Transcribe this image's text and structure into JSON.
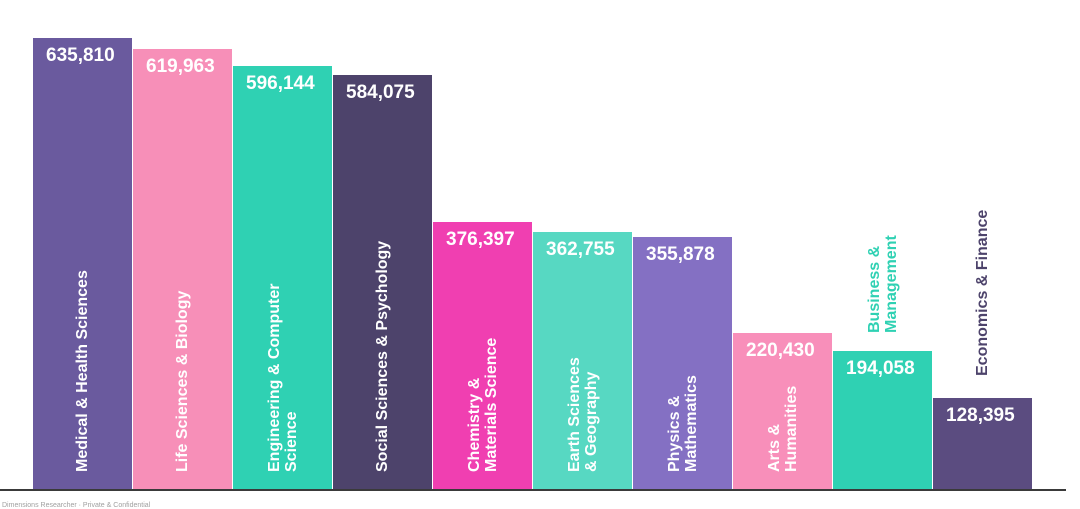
{
  "chart_data": {
    "type": "bar",
    "title": "",
    "xlabel": "",
    "ylabel": "",
    "ylim": [
      0,
      635810
    ],
    "categories": [
      [
        "Medical & Health Sciences"
      ],
      [
        "Life Sciences & Biology"
      ],
      [
        "Engineering & Computer",
        "Science"
      ],
      [
        "Social Sciences & Psychology"
      ],
      [
        "Chemistry &",
        "Materials Science"
      ],
      [
        "Earth Sciences",
        "& Geography"
      ],
      [
        "Physics &",
        "Mathematics"
      ],
      [
        "Arts &",
        "Humanities"
      ],
      [
        "Business &",
        "Management"
      ],
      [
        "Economics & Finance"
      ]
    ],
    "values": [
      635810,
      619963,
      596144,
      584075,
      376397,
      362755,
      355878,
      220430,
      194058,
      128395
    ],
    "value_labels": [
      "635,810",
      "619,963",
      "596,144",
      "584,075",
      "376,397",
      "362,755",
      "355,878",
      "220,430",
      "194,058",
      "128,395"
    ],
    "colors": [
      "#6a5a9e",
      "#f78fb8",
      "#2fd1b3",
      "#4d436b",
      "#f03fb1",
      "#57d8c2",
      "#8470c3",
      "#f88fba",
      "#2fd1b3",
      "#5b4c80"
    ],
    "label_colors": [
      "#ffffff",
      "#ffffff",
      "#ffffff",
      "#ffffff",
      "#ffffff",
      "#ffffff",
      "#ffffff",
      "#ffffff",
      "#2fd1b3",
      "#4d436b"
    ],
    "grid": false,
    "legend": "none"
  },
  "footer": {
    "text": "Dimensions Researcher · Private & Confidential"
  }
}
